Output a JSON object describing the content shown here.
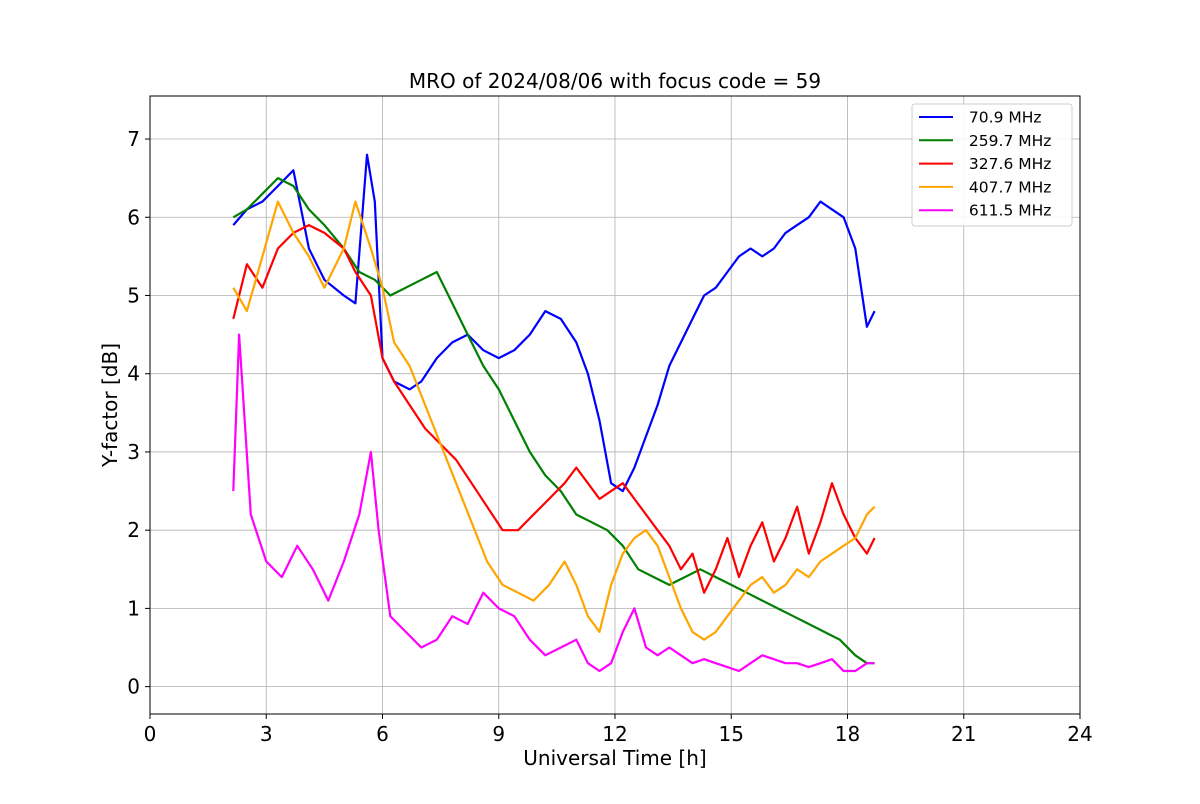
{
  "chart_data": {
    "type": "line",
    "title": "MRO of 2024/08/06 with focus code = 59",
    "xlabel": "Universal Time [h]",
    "ylabel": "Y-factor [dB]",
    "xlim": [
      0,
      24
    ],
    "ylim": [
      -0.35,
      7.55
    ],
    "xticks": [
      "0",
      "3",
      "6",
      "9",
      "12",
      "15",
      "18",
      "21",
      "24"
    ],
    "yticks": [
      "0",
      "1",
      "2",
      "3",
      "4",
      "5",
      "6",
      "7"
    ],
    "grid": true,
    "legend_position": "top-right",
    "series": [
      {
        "name": " 70.9 MHz",
        "color": "#0000ff",
        "x": [
          2.15,
          2.5,
          2.9,
          3.3,
          3.7,
          4.1,
          4.5,
          5.0,
          5.3,
          5.6,
          5.8,
          6.0,
          6.3,
          6.7,
          7.0,
          7.4,
          7.8,
          8.2,
          8.6,
          9.0,
          9.4,
          9.8,
          10.2,
          10.6,
          11.0,
          11.3,
          11.6,
          11.9,
          12.2,
          12.5,
          12.8,
          13.1,
          13.4,
          13.7,
          14.0,
          14.3,
          14.6,
          14.9,
          15.2,
          15.5,
          15.8,
          16.1,
          16.4,
          16.7,
          17.0,
          17.3,
          17.6,
          17.9,
          18.2,
          18.5,
          18.7
        ],
        "y": [
          5.9,
          6.1,
          6.2,
          6.4,
          6.6,
          5.6,
          5.2,
          5.0,
          4.9,
          6.8,
          6.2,
          4.2,
          3.9,
          3.8,
          3.9,
          4.2,
          4.4,
          4.5,
          4.3,
          4.2,
          4.3,
          4.5,
          4.8,
          4.7,
          4.4,
          4.0,
          3.4,
          2.6,
          2.5,
          2.8,
          3.2,
          3.6,
          4.1,
          4.4,
          4.7,
          5.0,
          5.1,
          5.3,
          5.5,
          5.6,
          5.5,
          5.6,
          5.8,
          5.9,
          6.0,
          6.2,
          6.1,
          6.0,
          5.6,
          4.6,
          4.8
        ]
      },
      {
        "name": " 259.7 MHz",
        "color": "#008000",
        "x": [
          2.15,
          2.5,
          2.9,
          3.3,
          3.7,
          4.1,
          4.5,
          5.0,
          5.4,
          5.8,
          6.2,
          6.6,
          7.0,
          7.4,
          7.8,
          8.2,
          8.6,
          9.0,
          9.4,
          9.8,
          10.2,
          10.6,
          11.0,
          11.4,
          11.8,
          12.2,
          12.6,
          13.0,
          13.4,
          13.8,
          14.2,
          14.6,
          15.0,
          15.4,
          15.8,
          16.2,
          16.6,
          17.0,
          17.4,
          17.8,
          18.2,
          18.5,
          18.7
        ],
        "y": [
          6.0,
          6.1,
          6.3,
          6.5,
          6.4,
          6.1,
          5.9,
          5.6,
          5.3,
          5.2,
          5.0,
          5.1,
          5.2,
          5.3,
          4.9,
          4.5,
          4.1,
          3.8,
          3.4,
          3.0,
          2.7,
          2.5,
          2.2,
          2.1,
          2.0,
          1.8,
          1.5,
          1.4,
          1.3,
          1.4,
          1.5,
          1.4,
          1.3,
          1.2,
          1.1,
          1.0,
          0.9,
          0.8,
          0.7,
          0.6,
          0.4,
          0.3,
          0.3
        ]
      },
      {
        "name": " 327.6 MHz",
        "color": "#ff0000",
        "x": [
          2.15,
          2.5,
          2.9,
          3.3,
          3.7,
          4.1,
          4.5,
          5.0,
          5.3,
          5.7,
          6.0,
          6.3,
          6.7,
          7.1,
          7.5,
          7.9,
          8.3,
          8.7,
          9.1,
          9.5,
          9.9,
          10.3,
          10.7,
          11.0,
          11.3,
          11.6,
          11.9,
          12.2,
          12.5,
          12.8,
          13.1,
          13.4,
          13.7,
          14.0,
          14.3,
          14.6,
          14.9,
          15.2,
          15.5,
          15.8,
          16.1,
          16.4,
          16.7,
          17.0,
          17.3,
          17.6,
          17.9,
          18.2,
          18.5,
          18.7
        ],
        "y": [
          4.7,
          5.4,
          5.1,
          5.6,
          5.8,
          5.9,
          5.8,
          5.6,
          5.3,
          5.0,
          4.2,
          3.9,
          3.6,
          3.3,
          3.1,
          2.9,
          2.6,
          2.3,
          2.0,
          2.0,
          2.2,
          2.4,
          2.6,
          2.8,
          2.6,
          2.4,
          2.5,
          2.6,
          2.4,
          2.2,
          2.0,
          1.8,
          1.5,
          1.7,
          1.2,
          1.5,
          1.9,
          1.4,
          1.8,
          2.1,
          1.6,
          1.9,
          2.3,
          1.7,
          2.1,
          2.6,
          2.2,
          1.9,
          1.7,
          1.9
        ]
      },
      {
        "name": " 407.7 MHz",
        "color": "#ffa500",
        "x": [
          2.15,
          2.5,
          2.9,
          3.3,
          3.7,
          4.1,
          4.5,
          5.0,
          5.3,
          5.7,
          6.0,
          6.3,
          6.7,
          7.1,
          7.5,
          7.9,
          8.3,
          8.7,
          9.1,
          9.5,
          9.9,
          10.3,
          10.7,
          11.0,
          11.3,
          11.6,
          11.9,
          12.2,
          12.5,
          12.8,
          13.1,
          13.4,
          13.7,
          14.0,
          14.3,
          14.6,
          14.9,
          15.2,
          15.5,
          15.8,
          16.1,
          16.4,
          16.7,
          17.0,
          17.3,
          17.6,
          17.9,
          18.2,
          18.5,
          18.7
        ],
        "y": [
          5.1,
          4.8,
          5.5,
          6.2,
          5.8,
          5.5,
          5.1,
          5.6,
          6.2,
          5.6,
          5.1,
          4.4,
          4.1,
          3.6,
          3.1,
          2.6,
          2.1,
          1.6,
          1.3,
          1.2,
          1.1,
          1.3,
          1.6,
          1.3,
          0.9,
          0.7,
          1.3,
          1.7,
          1.9,
          2.0,
          1.8,
          1.4,
          1.0,
          0.7,
          0.6,
          0.7,
          0.9,
          1.1,
          1.3,
          1.4,
          1.2,
          1.3,
          1.5,
          1.4,
          1.6,
          1.7,
          1.8,
          1.9,
          2.2,
          2.3
        ]
      },
      {
        "name": " 611.5 MHz",
        "color": "#ff00ff",
        "x": [
          2.15,
          2.3,
          2.6,
          3.0,
          3.4,
          3.8,
          4.2,
          4.6,
          5.0,
          5.4,
          5.7,
          5.9,
          6.2,
          6.6,
          7.0,
          7.4,
          7.8,
          8.2,
          8.6,
          9.0,
          9.4,
          9.8,
          10.2,
          10.6,
          11.0,
          11.3,
          11.6,
          11.9,
          12.2,
          12.5,
          12.8,
          13.1,
          13.4,
          13.7,
          14.0,
          14.3,
          14.6,
          14.9,
          15.2,
          15.5,
          15.8,
          16.1,
          16.4,
          16.7,
          17.0,
          17.3,
          17.6,
          17.9,
          18.2,
          18.5,
          18.7
        ],
        "y": [
          2.5,
          4.5,
          2.2,
          1.6,
          1.4,
          1.8,
          1.5,
          1.1,
          1.6,
          2.2,
          3.0,
          2.0,
          0.9,
          0.7,
          0.5,
          0.6,
          0.9,
          0.8,
          1.2,
          1.0,
          0.9,
          0.6,
          0.4,
          0.5,
          0.6,
          0.3,
          0.2,
          0.3,
          0.7,
          1.0,
          0.5,
          0.4,
          0.5,
          0.4,
          0.3,
          0.35,
          0.3,
          0.25,
          0.2,
          0.3,
          0.4,
          0.35,
          0.3,
          0.3,
          0.25,
          0.3,
          0.35,
          0.2,
          0.2,
          0.3,
          0.3
        ]
      }
    ]
  }
}
